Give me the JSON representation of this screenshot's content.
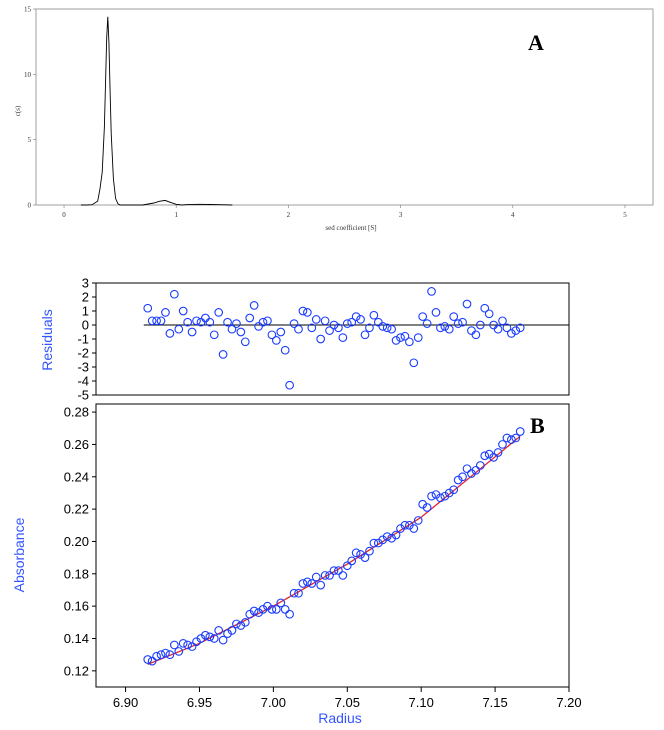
{
  "colors": {
    "axis": "#000000",
    "fit_line": "#e0262b",
    "points": "#1a3cff",
    "axis_title": "#3355ff",
    "curve": "#000000"
  },
  "panel_a": {
    "letter": "A",
    "chart_data": {
      "type": "line",
      "title": "",
      "xlabel": "sed coefficient [S]",
      "ylabel": "c(s)",
      "xlim": [
        -0.25,
        5.25
      ],
      "ylim": [
        0,
        15
      ],
      "xticks": [
        0,
        1,
        2,
        3,
        4,
        5
      ],
      "yticks": [
        0,
        5,
        10,
        15
      ],
      "series": [
        {
          "x": [
            0.15,
            0.2,
            0.25,
            0.3,
            0.32,
            0.34,
            0.36,
            0.38,
            0.39,
            0.4,
            0.41,
            0.42,
            0.44,
            0.46,
            0.48,
            0.5,
            0.6,
            0.7,
            0.8,
            0.85,
            0.9,
            0.95,
            1.0,
            1.05,
            1.1,
            1.2,
            1.3,
            1.4,
            1.5
          ],
          "y": [
            0,
            0,
            0.02,
            0.3,
            1.2,
            2.5,
            6.0,
            12.8,
            14.4,
            12.5,
            9.0,
            5.5,
            2.0,
            0.5,
            0.1,
            0,
            0,
            0,
            0.15,
            0.28,
            0.35,
            0.2,
            0.05,
            0,
            0.03,
            0.05,
            0.04,
            0.02,
            0
          ]
        }
      ]
    }
  },
  "panel_b": {
    "letter": "B",
    "residuals": {
      "chart_data": {
        "type": "scatter",
        "ylabel": "Residuals",
        "ylim": [
          -5,
          3
        ],
        "yticks": [
          3,
          2,
          1,
          0,
          -1,
          -2,
          -3,
          -4,
          -5
        ],
        "x": [
          6.915,
          6.918,
          6.921,
          6.924,
          6.927,
          6.93,
          6.933,
          6.936,
          6.939,
          6.942,
          6.945,
          6.948,
          6.951,
          6.954,
          6.957,
          6.96,
          6.963,
          6.966,
          6.969,
          6.972,
          6.975,
          6.978,
          6.981,
          6.984,
          6.987,
          6.99,
          6.993,
          6.996,
          6.999,
          7.002,
          7.005,
          7.008,
          7.011,
          7.014,
          7.017,
          7.02,
          7.023,
          7.026,
          7.029,
          7.032,
          7.035,
          7.038,
          7.041,
          7.044,
          7.047,
          7.05,
          7.053,
          7.056,
          7.059,
          7.062,
          7.065,
          7.068,
          7.071,
          7.074,
          7.077,
          7.08,
          7.083,
          7.086,
          7.089,
          7.092,
          7.095,
          7.098,
          7.101,
          7.104,
          7.107,
          7.11,
          7.113,
          7.116,
          7.119,
          7.122,
          7.125,
          7.128,
          7.131,
          7.134,
          7.137,
          7.14,
          7.143,
          7.146,
          7.149,
          7.152,
          7.155,
          7.158,
          7.161,
          7.164,
          7.167
        ],
        "y": [
          1.2,
          0.3,
          0.3,
          0.3,
          0.9,
          -0.6,
          2.2,
          -0.3,
          1.0,
          0.2,
          -0.5,
          0.3,
          0.2,
          0.5,
          0.2,
          -0.7,
          0.9,
          -2.1,
          0.2,
          -0.3,
          0.1,
          -0.5,
          -1.2,
          0.5,
          1.4,
          -0.1,
          0.2,
          0.3,
          -0.7,
          -1.1,
          -0.5,
          -1.8,
          -4.3,
          0.1,
          -0.3,
          1.0,
          0.9,
          -0.2,
          0.4,
          -1.0,
          0.3,
          -0.4,
          0.0,
          -0.2,
          -0.9,
          0.1,
          0.2,
          0.6,
          0.4,
          -0.7,
          -0.2,
          0.7,
          0.2,
          -0.1,
          -0.2,
          -0.3,
          -1.1,
          -0.9,
          -0.8,
          -1.2,
          -2.7,
          -0.9,
          0.6,
          0.1,
          2.4,
          0.9,
          -0.2,
          -0.1,
          -0.3,
          0.6,
          0.1,
          0.2,
          1.5,
          -0.4,
          -0.7,
          0.0,
          1.2,
          0.8,
          0.0,
          -0.3,
          0.3,
          -0.2,
          -0.6,
          -0.4,
          -0.2
        ]
      }
    },
    "fit": {
      "chart_data": {
        "type": "scatter",
        "xlabel": "Radius",
        "ylabel": "Absorbance",
        "xlim": [
          6.88,
          7.2
        ],
        "ylim": [
          0.11,
          0.285
        ],
        "xticks": [
          "6.90",
          "6.95",
          "7.00",
          "7.05",
          "7.10",
          "7.15",
          "7.20"
        ],
        "yticks": [
          "0.28",
          "0.26",
          "0.24",
          "0.22",
          "0.20",
          "0.18",
          "0.16",
          "0.14",
          "0.12"
        ],
        "series": [
          {
            "name": "data",
            "x": [
              6.915,
              6.918,
              6.921,
              6.924,
              6.927,
              6.93,
              6.933,
              6.936,
              6.939,
              6.942,
              6.945,
              6.948,
              6.951,
              6.954,
              6.957,
              6.96,
              6.963,
              6.966,
              6.969,
              6.972,
              6.975,
              6.978,
              6.981,
              6.984,
              6.987,
              6.99,
              6.993,
              6.996,
              6.999,
              7.002,
              7.005,
              7.008,
              7.011,
              7.014,
              7.017,
              7.02,
              7.023,
              7.026,
              7.029,
              7.032,
              7.035,
              7.038,
              7.041,
              7.044,
              7.047,
              7.05,
              7.053,
              7.056,
              7.059,
              7.062,
              7.065,
              7.068,
              7.071,
              7.074,
              7.077,
              7.08,
              7.083,
              7.086,
              7.089,
              7.092,
              7.095,
              7.098,
              7.101,
              7.104,
              7.107,
              7.11,
              7.113,
              7.116,
              7.119,
              7.122,
              7.125,
              7.128,
              7.131,
              7.134,
              7.137,
              7.14,
              7.143,
              7.146,
              7.149,
              7.152,
              7.155,
              7.158,
              7.161,
              7.164,
              7.167
            ],
            "y": [
              0.127,
              0.126,
              0.129,
              0.13,
              0.131,
              0.13,
              0.136,
              0.132,
              0.137,
              0.136,
              0.135,
              0.138,
              0.14,
              0.142,
              0.141,
              0.14,
              0.145,
              0.139,
              0.143,
              0.145,
              0.149,
              0.148,
              0.15,
              0.155,
              0.157,
              0.156,
              0.158,
              0.16,
              0.158,
              0.158,
              0.162,
              0.158,
              0.155,
              0.168,
              0.168,
              0.174,
              0.175,
              0.174,
              0.178,
              0.173,
              0.179,
              0.179,
              0.182,
              0.182,
              0.179,
              0.185,
              0.188,
              0.193,
              0.192,
              0.19,
              0.194,
              0.199,
              0.199,
              0.201,
              0.203,
              0.202,
              0.204,
              0.208,
              0.21,
              0.21,
              0.208,
              0.213,
              0.223,
              0.221,
              0.228,
              0.229,
              0.227,
              0.228,
              0.23,
              0.232,
              0.238,
              0.24,
              0.245,
              0.242,
              0.244,
              0.247,
              0.253,
              0.254,
              0.252,
              0.255,
              0.26,
              0.264,
              0.263,
              0.264,
              0.268
            ]
          },
          {
            "name": "fit",
            "x": [
              6.915,
              6.95,
              7.0,
              7.05,
              7.1,
              7.167
            ],
            "y": [
              0.124,
              0.137,
              0.16,
              0.186,
              0.215,
              0.265
            ]
          }
        ]
      }
    }
  }
}
